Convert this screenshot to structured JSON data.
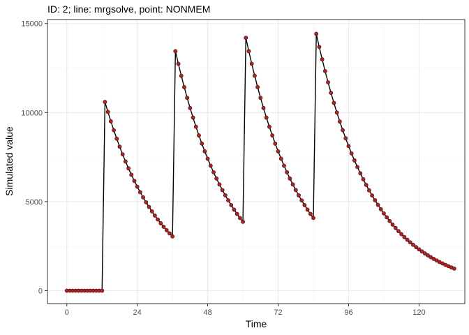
{
  "chart_data": {
    "type": "line",
    "title": "ID: 2; line: mrgsolve, point: NONMEM",
    "xlabel": "Time",
    "ylabel": "Simulated value",
    "xlim": [
      -6.6,
      135.6
    ],
    "ylim": [
      -725,
      15225
    ],
    "x_ticks": [
      0,
      24,
      48,
      72,
      96,
      120
    ],
    "y_ticks": [
      0,
      5000,
      10000,
      15000
    ],
    "x_tick_labels": [
      "0",
      "24",
      "48",
      "72",
      "96",
      "120"
    ],
    "y_tick_labels": [
      "0",
      "5000",
      "10000",
      "15000"
    ],
    "grid": true,
    "legend": "none",
    "colors": {
      "line": "#000000",
      "point_fill": "#b22222",
      "point_stroke": "#3a0a0a",
      "grid_major": "#ebebeb",
      "grid_minor": "#f5f5f5",
      "panel_border": "#333333"
    },
    "dose_segments": [
      {
        "start": 0,
        "end": 12,
        "c0": 0,
        "k": 0
      },
      {
        "start": 13,
        "end": 36,
        "c0": 10600,
        "k": 0.0542
      },
      {
        "start": 37,
        "end": 60,
        "c0": 13450,
        "k": 0.0542
      },
      {
        "start": 61,
        "end": 84,
        "c0": 14200,
        "k": 0.0542
      },
      {
        "start": 85,
        "end": 132,
        "c0": 14420,
        "k": 0.0522
      }
    ],
    "time_step": 1
  }
}
